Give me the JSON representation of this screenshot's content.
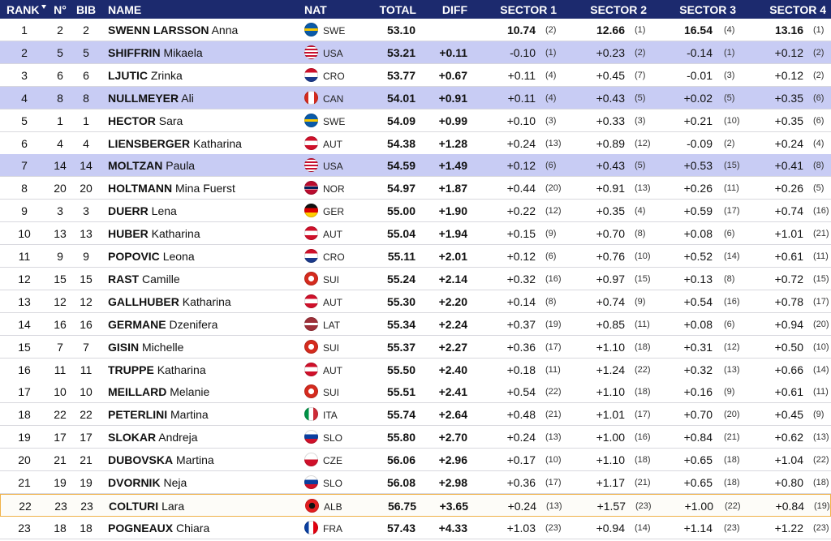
{
  "header": {
    "columns": [
      "RANK",
      "N°",
      "BIB",
      "NAME",
      "NAT",
      "TOTAL",
      "DIFF",
      "SECTOR 1",
      "SECTOR 2",
      "SECTOR 3",
      "SECTOR 4"
    ]
  },
  "table": {
    "rows": [
      [
        "1",
        "2",
        "2",
        "SWENN LARSSON",
        "Anna",
        "SWE",
        "53.10",
        null,
        "10.74",
        "(2)",
        "12.66",
        "(1)",
        "16.54",
        "(4)",
        "13.16",
        "(1)"
      ],
      [
        "2",
        "5",
        "5",
        "SHIFFRIN",
        "Mikaela",
        "USA",
        "53.21",
        "+0.11",
        "-0.10",
        "(1)",
        "+0.23",
        "(2)",
        "-0.14",
        "(1)",
        "+0.12",
        "(2)"
      ],
      [
        "3",
        "6",
        "6",
        "LJUTIC",
        "Zrinka",
        "CRO",
        "53.77",
        "+0.67",
        "+0.11",
        "(4)",
        "+0.45",
        "(7)",
        "-0.01",
        "(3)",
        "+0.12",
        "(2)"
      ],
      [
        "4",
        "8",
        "8",
        "NULLMEYER",
        "Ali",
        "CAN",
        "54.01",
        "+0.91",
        "+0.11",
        "(4)",
        "+0.43",
        "(5)",
        "+0.02",
        "(5)",
        "+0.35",
        "(6)"
      ],
      [
        "5",
        "1",
        "1",
        "HECTOR",
        "Sara",
        "SWE",
        "54.09",
        "+0.99",
        "+0.10",
        "(3)",
        "+0.33",
        "(3)",
        "+0.21",
        "(10)",
        "+0.35",
        "(6)"
      ],
      [
        "6",
        "4",
        "4",
        "LIENSBERGER",
        "Katharina",
        "AUT",
        "54.38",
        "+1.28",
        "+0.24",
        "(13)",
        "+0.89",
        "(12)",
        "-0.09",
        "(2)",
        "+0.24",
        "(4)"
      ],
      [
        "7",
        "14",
        "14",
        "MOLTZAN",
        "Paula",
        "USA",
        "54.59",
        "+1.49",
        "+0.12",
        "(6)",
        "+0.43",
        "(5)",
        "+0.53",
        "(15)",
        "+0.41",
        "(8)"
      ],
      [
        "8",
        "20",
        "20",
        "HOLTMANN",
        "Mina Fuerst",
        "NOR",
        "54.97",
        "+1.87",
        "+0.44",
        "(20)",
        "+0.91",
        "(13)",
        "+0.26",
        "(11)",
        "+0.26",
        "(5)"
      ],
      [
        "9",
        "3",
        "3",
        "DUERR",
        "Lena",
        "GER",
        "55.00",
        "+1.90",
        "+0.22",
        "(12)",
        "+0.35",
        "(4)",
        "+0.59",
        "(17)",
        "+0.74",
        "(16)"
      ],
      [
        "10",
        "13",
        "13",
        "HUBER",
        "Katharina",
        "AUT",
        "55.04",
        "+1.94",
        "+0.15",
        "(9)",
        "+0.70",
        "(8)",
        "+0.08",
        "(6)",
        "+1.01",
        "(21)"
      ],
      [
        "11",
        "9",
        "9",
        "POPOVIC",
        "Leona",
        "CRO",
        "55.11",
        "+2.01",
        "+0.12",
        "(6)",
        "+0.76",
        "(10)",
        "+0.52",
        "(14)",
        "+0.61",
        "(11)"
      ],
      [
        "12",
        "15",
        "15",
        "RAST",
        "Camille",
        "SUI",
        "55.24",
        "+2.14",
        "+0.32",
        "(16)",
        "+0.97",
        "(15)",
        "+0.13",
        "(8)",
        "+0.72",
        "(15)"
      ],
      [
        "13",
        "12",
        "12",
        "GALLHUBER",
        "Katharina",
        "AUT",
        "55.30",
        "+2.20",
        "+0.14",
        "(8)",
        "+0.74",
        "(9)",
        "+0.54",
        "(16)",
        "+0.78",
        "(17)"
      ],
      [
        "14",
        "16",
        "16",
        "GERMANE",
        "Dzenifera",
        "LAT",
        "55.34",
        "+2.24",
        "+0.37",
        "(19)",
        "+0.85",
        "(11)",
        "+0.08",
        "(6)",
        "+0.94",
        "(20)"
      ],
      [
        "15",
        "7",
        "7",
        "GISIN",
        "Michelle",
        "SUI",
        "55.37",
        "+2.27",
        "+0.36",
        "(17)",
        "+1.10",
        "(18)",
        "+0.31",
        "(12)",
        "+0.50",
        "(10)"
      ],
      [
        "16",
        "11",
        "11",
        "TRUPPE",
        "Katharina",
        "AUT",
        "55.50",
        "+2.40",
        "+0.18",
        "(11)",
        "+1.24",
        "(22)",
        "+0.32",
        "(13)",
        "+0.66",
        "(14)"
      ],
      [
        "17",
        "10",
        "10",
        "MEILLARD",
        "Melanie",
        "SUI",
        "55.51",
        "+2.41",
        "+0.54",
        "(22)",
        "+1.10",
        "(18)",
        "+0.16",
        "(9)",
        "+0.61",
        "(11)"
      ],
      [
        "18",
        "22",
        "22",
        "PETERLINI",
        "Martina",
        "ITA",
        "55.74",
        "+2.64",
        "+0.48",
        "(21)",
        "+1.01",
        "(17)",
        "+0.70",
        "(20)",
        "+0.45",
        "(9)"
      ],
      [
        "19",
        "17",
        "17",
        "SLOKAR",
        "Andreja",
        "SLO",
        "55.80",
        "+2.70",
        "+0.24",
        "(13)",
        "+1.00",
        "(16)",
        "+0.84",
        "(21)",
        "+0.62",
        "(13)"
      ],
      [
        "20",
        "21",
        "21",
        "DUBOVSKA",
        "Martina",
        "CZE",
        "56.06",
        "+2.96",
        "+0.17",
        "(10)",
        "+1.10",
        "(18)",
        "+0.65",
        "(18)",
        "+1.04",
        "(22)"
      ],
      [
        "21",
        "19",
        "19",
        "DVORNIK",
        "Neja",
        "SLO",
        "56.08",
        "+2.98",
        "+0.36",
        "(17)",
        "+1.17",
        "(21)",
        "+0.65",
        "(18)",
        "+0.80",
        "(18)"
      ],
      [
        "22",
        "23",
        "23",
        "COLTURI",
        "Lara",
        "ALB",
        "56.75",
        "+3.65",
        "+0.24",
        "(13)",
        "+1.57",
        "(23)",
        "+1.00",
        "(22)",
        "+0.84",
        "(19)"
      ],
      [
        "23",
        "18",
        "18",
        "POGNEAUX",
        "Chiara",
        "FRA",
        "57.43",
        "+4.33",
        "+1.03",
        "(23)",
        "+0.94",
        "(14)",
        "+1.14",
        "(23)",
        "+1.22",
        "(23)"
      ]
    ]
  }
}
